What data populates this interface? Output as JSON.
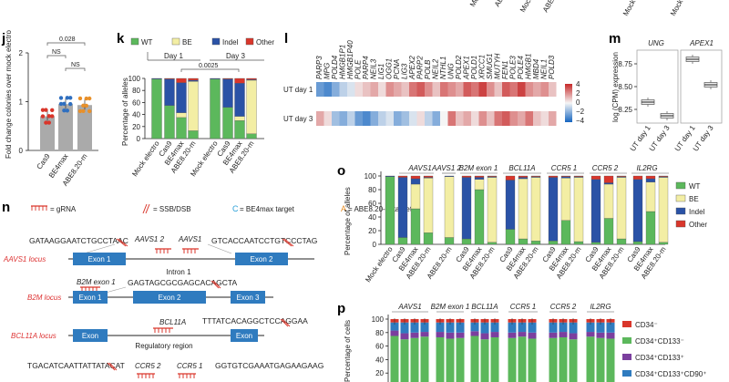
{
  "top_strip": {
    "labels": [
      "Mock",
      "ABE",
      "Mock",
      "ABE",
      "Mock",
      "Mock"
    ]
  },
  "panel_j": {
    "letter": "j",
    "ylabel": "Fold change colonies over mock electro",
    "pvals": [
      "0.028",
      "NS",
      "NS"
    ],
    "yticks": [
      "0",
      "1",
      "2"
    ],
    "categories": [
      "Cas9",
      "BE4max",
      "ABE8.20-m"
    ]
  },
  "panel_k": {
    "letter": "k",
    "ylabel": "Percentage of alleles",
    "legend": [
      {
        "name": "WT",
        "color": "#5cb85c"
      },
      {
        "name": "BE",
        "color": "#f3eea4"
      },
      {
        "name": "Indel",
        "color": "#2a52a6"
      },
      {
        "name": "Other",
        "color": "#d9362b"
      }
    ],
    "day1": "Day 1",
    "day3": "Day 3",
    "pval": "0.0025",
    "yticks": [
      "0",
      "20",
      "40",
      "60",
      "80",
      "100"
    ],
    "categories": [
      "Mock electro",
      "Cas9",
      "BE4max",
      "ABE8.20-m",
      "Mock electro",
      "Cas9",
      "BE4max",
      "ABE8.20-m"
    ]
  },
  "panel_l": {
    "letter": "l",
    "genes": [
      "PARP3",
      "MPG",
      "POLD4",
      "HMGB1P1",
      "HMGB1P40",
      "POLE",
      "PARP4",
      "NEIL3",
      "LIG1",
      "OGG1",
      "PCNA",
      "LIG3",
      "APEX2",
      "PARP2",
      "POLB",
      "NEIL2",
      "NTHL1",
      "UNG",
      "POLD2",
      "APEX1",
      "POLD1",
      "XRCC1",
      "SMUG1",
      "MUTYH",
      "FEN1",
      "POLE3",
      "POLE4",
      "HMGB1",
      "MBD4",
      "NEIL1",
      "POLD3"
    ],
    "rows": [
      "UT day 1",
      "UT day 3"
    ],
    "scale_ticks": [
      "4",
      "2",
      "0",
      "−2",
      "−4"
    ]
  },
  "panel_m": {
    "letter": "m",
    "ylabel": "log (CPM) expression",
    "genes": [
      "UNG",
      "APEX1"
    ],
    "yticks": [
      "8.25",
      "8.50",
      "8.75"
    ],
    "categories": [
      "UT day 1",
      "UT day 3"
    ]
  },
  "panel_n": {
    "letter": "n",
    "legend": {
      "grna": "= gRNA",
      "dsb": "= SSB/DSB",
      "be4": "= BE4max target",
      "abe": "= ABE8.20-m target"
    },
    "aavs1": {
      "locus": "AAVS1 locus",
      "seq_left": "GATAAGGAATCTGCCTAAC",
      "seq_right": "GTCACCAATCCTGTCCCTAG",
      "guide1": "AAVS1 2",
      "guide2": "AAVS1",
      "exon1": "Exon 1",
      "exon2": "Exon 2",
      "intron": "Intron 1"
    },
    "b2m": {
      "locus": "B2M locus",
      "guide": "B2M exon 1",
      "seq": "GAGTAGCGCGAGCACAGCTA",
      "exon1": "Exon 1",
      "exon2": "Exon 2",
      "exon3": "Exon 3"
    },
    "bcl11a": {
      "locus": "BCL11A locus",
      "guide": "BCL11A",
      "seq": "TTTATCACAGGCTCCAGGAA",
      "exon_left": "Exon",
      "exon_right": "Exon",
      "region": "Regulatory region"
    },
    "ccr5": {
      "seq_left": "TGACATCAATTATTATACAT",
      "guide1": "CCR5 2",
      "guide2": "CCR5 1",
      "seq_right": "GGTGTCGAAATGAGAAGAAG"
    }
  },
  "panel_o": {
    "letter": "o",
    "ylabel": "Percentage of alleles",
    "groups": [
      "AAVS1",
      "AAVS1 2",
      "B2M exon 1",
      "BCL11A",
      "CCR5 1",
      "CCR5 2",
      "IL2RG"
    ],
    "legend": [
      {
        "name": "WT",
        "color": "#5cb85c"
      },
      {
        "name": "BE",
        "color": "#f3eea4"
      },
      {
        "name": "Indel",
        "color": "#2a52a6"
      },
      {
        "name": "Other",
        "color": "#d9362b"
      }
    ],
    "yticks": [
      "0",
      "20",
      "40",
      "60",
      "80",
      "100"
    ],
    "xlabels": [
      "Mock electro",
      "Cas9",
      "BE4max",
      "ABE8.20-m",
      "ABE8.20-m",
      "Cas9",
      "BE4max",
      "ABE8.20-m",
      "Cas9",
      "BE4max",
      "ABE8.20-m",
      "Cas9",
      "BE4max",
      "ABE8.20-m",
      "Cas9",
      "BE4max",
      "ABE8.20-m",
      "Cas9",
      "BE4max",
      "ABE8.20-m"
    ]
  },
  "panel_p": {
    "letter": "p",
    "ylabel": "Percentage of cells",
    "groups": [
      "AAVS1",
      "B2M exon 1",
      "BCL11A",
      "CCR5 1",
      "CCR5 2",
      "IL2RG"
    ],
    "yticks": [
      "20",
      "40",
      "60",
      "80",
      "100"
    ],
    "legend": [
      {
        "name": "CD34⁻",
        "color": "#d9362b"
      },
      {
        "name": "CD34⁺CD133⁻",
        "color": "#5cb85c"
      },
      {
        "name": "CD34⁺CD133⁺",
        "color": "#7b3f9e"
      },
      {
        "name": "CD34⁺CD133⁺CD90⁺",
        "color": "#2f7bbf"
      }
    ]
  },
  "chart_data": [
    {
      "type": "bar",
      "panel": "j",
      "categories": [
        "Cas9",
        "BE4max",
        "ABE8.20-m"
      ],
      "values": [
        0.7,
        0.95,
        0.93
      ],
      "ylabel": "Fold change colonies over mock electro",
      "ylim": [
        0,
        2
      ]
    },
    {
      "type": "bar",
      "panel": "k",
      "stacked": true,
      "categories": [
        "Mock electro",
        "Cas9",
        "BE4max",
        "ABE8.20-m",
        "Mock electro",
        "Cas9",
        "BE4max",
        "ABE8.20-m"
      ],
      "series": [
        {
          "name": "WT",
          "values": [
            99,
            55,
            35,
            13,
            99,
            52,
            30,
            8
          ]
        },
        {
          "name": "BE",
          "values": [
            0,
            0,
            8,
            82,
            0,
            0,
            7,
            89
          ]
        },
        {
          "name": "Indel",
          "values": [
            1,
            44,
            50,
            2,
            1,
            47,
            55,
            1
          ]
        },
        {
          "name": "Other",
          "values": [
            0,
            1,
            7,
            3,
            0,
            1,
            8,
            2
          ]
        }
      ],
      "ylim": [
        0,
        100
      ],
      "ylabel": "Percentage of alleles"
    },
    {
      "type": "heatmap",
      "panel": "l",
      "x": [
        "PARP3",
        "MPG",
        "POLD4",
        "HMGB1P1",
        "HMGB1P40",
        "POLE",
        "PARP4",
        "NEIL3",
        "LIG1",
        "OGG1",
        "PCNA",
        "LIG3",
        "APEX2",
        "PARP2",
        "POLB",
        "NEIL2",
        "NTHL1",
        "UNG",
        "POLD2",
        "APEX1",
        "POLD1",
        "XRCC1",
        "SMUG1",
        "MUTYH",
        "FEN1",
        "POLE3",
        "POLE4",
        "HMGB1",
        "MBD4",
        "NEIL1",
        "POLD3"
      ],
      "y": [
        "UT day 1",
        "UT day 3"
      ],
      "values": [
        [
          -2.5,
          -3.0,
          -2.0,
          -1.0,
          -0.5,
          0.5,
          1.0,
          1.5,
          0.5,
          2.0,
          1.5,
          1.0,
          2.5,
          3.0,
          2.0,
          1.0,
          2.5,
          2.0,
          1.5,
          3.0,
          2.5,
          3.5,
          2.0,
          1.0,
          3.0,
          2.5,
          3.5,
          2.0,
          1.5,
          2.0,
          1.0
        ],
        [
          1.5,
          0.5,
          -1.5,
          -2.0,
          -1.0,
          -2.5,
          -3.0,
          -2.0,
          -1.0,
          -0.5,
          -2.0,
          -1.5,
          -0.5,
          0.5,
          -1.0,
          -2.0,
          0.0,
          2.5,
          1.0,
          1.5,
          0.5,
          2.0,
          1.0,
          2.5,
          3.0,
          2.0,
          1.5,
          2.5,
          1.0,
          0.5,
          1.5
        ]
      ],
      "zlim": [
        -4,
        4
      ]
    },
    {
      "type": "box",
      "panel": "m",
      "series": [
        {
          "name": "UNG",
          "categories": [
            "UT day 1",
            "UT day 3"
          ],
          "medians": [
            8.33,
            8.18
          ]
        },
        {
          "name": "APEX1",
          "categories": [
            "UT day 1",
            "UT day 3"
          ],
          "medians": [
            8.8,
            8.52
          ]
        }
      ],
      "ylabel": "log (CPM) expression",
      "ylim": [
        8.1,
        8.9
      ]
    },
    {
      "type": "bar",
      "panel": "o",
      "stacked": true,
      "categories": [
        "Mock electro",
        "Cas9",
        "BE4max",
        "ABE8.20-m",
        "ABE8.20-m",
        "Cas9",
        "BE4max",
        "ABE8.20-m",
        "Cas9",
        "BE4max",
        "ABE8.20-m",
        "Cas9",
        "BE4max",
        "ABE8.20-m",
        "Cas9",
        "BE4max",
        "ABE8.20-m",
        "Cas9",
        "BE4max",
        "ABE8.20-m"
      ],
      "series": [
        {
          "name": "WT",
          "values": [
            99,
            10,
            52,
            17,
            10,
            8,
            80,
            3,
            22,
            8,
            5,
            5,
            35,
            4,
            3,
            38,
            8,
            4,
            48,
            3
          ]
        },
        {
          "name": "BE",
          "values": [
            0,
            0,
            36,
            80,
            89,
            0,
            15,
            95,
            0,
            88,
            93,
            0,
            62,
            94,
            0,
            50,
            90,
            0,
            43,
            95
          ]
        },
        {
          "name": "Indel",
          "values": [
            1,
            88,
            8,
            1,
            1,
            90,
            3,
            1,
            72,
            2,
            1,
            93,
            2,
            1,
            92,
            2,
            1,
            91,
            5,
            1
          ]
        },
        {
          "name": "Other",
          "values": [
            0,
            2,
            4,
            2,
            0,
            2,
            2,
            1,
            6,
            2,
            1,
            2,
            1,
            1,
            5,
            10,
            1,
            5,
            4,
            1
          ]
        }
      ],
      "ylim": [
        0,
        100
      ],
      "ylabel": "Percentage of alleles"
    },
    {
      "type": "bar",
      "panel": "p",
      "stacked": true,
      "series": [
        {
          "name": "CD34⁻",
          "values": [
            5,
            5,
            5,
            5,
            5,
            5,
            5,
            5,
            5,
            5,
            5,
            5,
            5,
            5,
            5,
            5,
            5,
            5,
            5
          ]
        },
        {
          "name": "CD34⁺CD133⁻",
          "values": [
            75,
            70,
            72,
            74,
            73,
            71,
            72,
            75,
            70,
            73,
            72,
            74,
            71,
            72,
            73,
            70,
            74,
            72,
            71
          ]
        },
        {
          "name": "CD34⁺CD133⁺",
          "values": [
            8,
            9,
            8,
            7,
            8,
            9,
            8,
            7,
            9,
            8,
            8,
            7,
            9,
            8,
            8,
            9,
            7,
            8,
            9
          ]
        },
        {
          "name": "CD34⁺CD133⁺CD90⁺",
          "values": [
            12,
            16,
            15,
            14,
            14,
            15,
            15,
            13,
            16,
            14,
            15,
            14,
            15,
            15,
            14,
            16,
            14,
            15,
            15
          ]
        }
      ],
      "ylim": [
        0,
        100
      ],
      "ylabel": "Percentage of cells"
    }
  ]
}
